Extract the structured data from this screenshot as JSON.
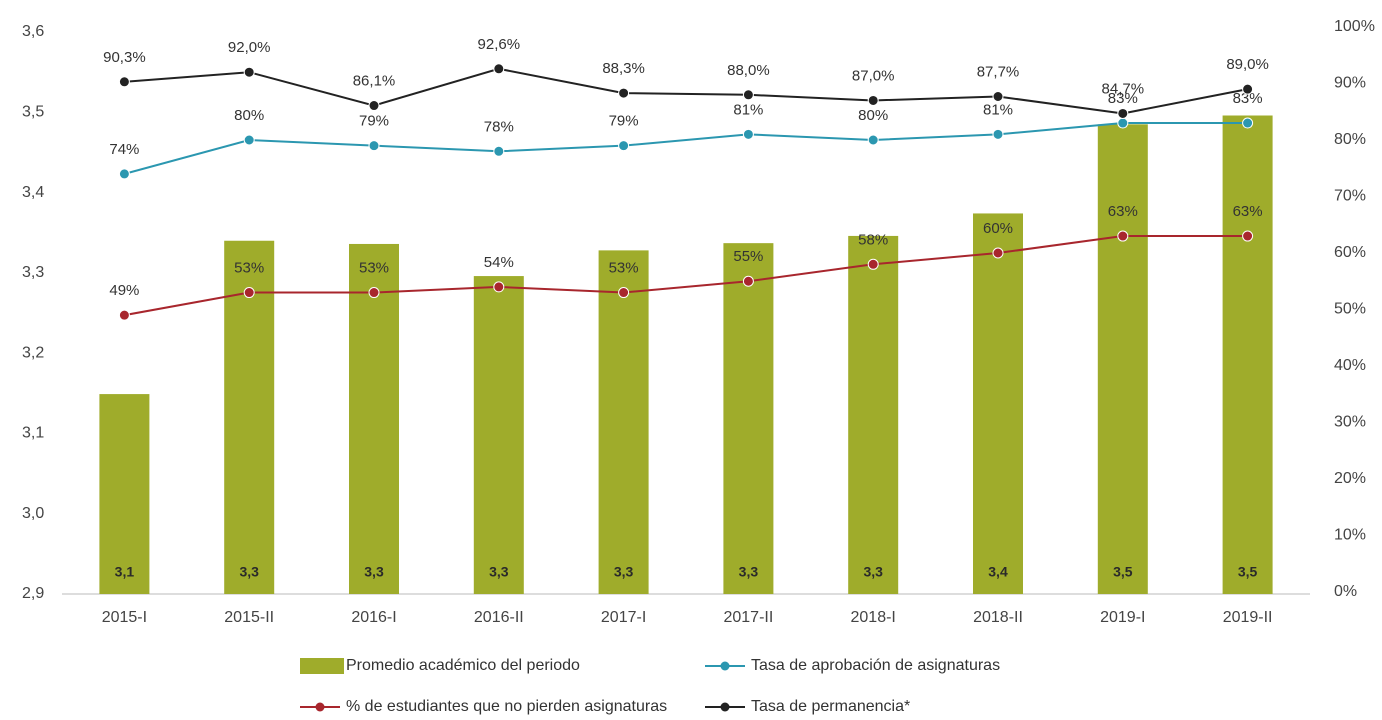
{
  "chart_data": {
    "type": "bar_line",
    "categories": [
      "2015-I",
      "2015-II",
      "2016-I",
      "2016-II",
      "2017-I",
      "2017-II",
      "2018-I",
      "2018-II",
      "2019-I",
      "2019-II"
    ],
    "ylim": [
      2.9,
      3.6
    ],
    "yticks": [
      {
        "value": 2.9,
        "label": "2,9"
      },
      {
        "value": 3.0,
        "label": "3,0"
      },
      {
        "value": 3.1,
        "label": "3,1"
      },
      {
        "value": 3.2,
        "label": "3,2"
      },
      {
        "value": 3.3,
        "label": "3,3"
      },
      {
        "value": 3.4,
        "label": "3,4"
      },
      {
        "value": 3.5,
        "label": "3,5"
      },
      {
        "value": 3.6,
        "label": "3,6"
      }
    ],
    "y2lim": [
      0,
      100
    ],
    "y2ticks": [
      {
        "value": 0,
        "label": "0%"
      },
      {
        "value": 10,
        "label": "10%"
      },
      {
        "value": 20,
        "label": "20%"
      },
      {
        "value": 30,
        "label": "30%"
      },
      {
        "value": 40,
        "label": "40%"
      },
      {
        "value": 50,
        "label": "50%"
      },
      {
        "value": 60,
        "label": "60%"
      },
      {
        "value": 70,
        "label": "70%"
      },
      {
        "value": 80,
        "label": "80%"
      },
      {
        "value": 90,
        "label": "90%"
      },
      {
        "value": 100,
        "label": "100%"
      }
    ],
    "series": [
      {
        "name": "Promedio académico del periodo",
        "type": "bar",
        "color": "#9fac2b",
        "axis": "y",
        "values": [
          3.149,
          3.34,
          3.336,
          3.296,
          3.328,
          3.337,
          3.346,
          3.374,
          3.485,
          3.496
        ],
        "value_labels": [
          "3,1",
          "3,3",
          "3,3",
          "3,3",
          "3,3",
          "3,3",
          "3,3",
          "3,4",
          "3,5",
          "3,5"
        ]
      },
      {
        "name": "Tasa de aprobación de asignaturas",
        "type": "line",
        "color": "#2b97b0",
        "axis": "y2",
        "values": [
          74,
          80,
          79,
          78,
          79,
          81,
          80,
          81,
          83,
          83
        ],
        "value_labels": [
          "74%",
          "80%",
          "79%",
          "78%",
          "79%",
          "81%",
          "80%",
          "81%",
          "83%",
          "83%"
        ]
      },
      {
        "name": "% de estudiantes que no pierden asignaturas",
        "type": "line",
        "color": "#a8262d",
        "axis": "y2",
        "values": [
          49,
          53,
          53,
          54,
          53,
          55,
          58,
          60,
          63,
          63
        ],
        "value_labels": [
          "49%",
          "53%",
          "53%",
          "54%",
          "53%",
          "55%",
          "58%",
          "60%",
          "63%",
          "63%"
        ]
      },
      {
        "name": "Tasa de permanencia*",
        "type": "line",
        "color": "#222222",
        "axis": "y2",
        "values": [
          90.3,
          92.0,
          86.1,
          92.6,
          88.3,
          88.0,
          87.0,
          87.7,
          84.7,
          89.0
        ],
        "value_labels": [
          "90,3%",
          "92,0%",
          "86,1%",
          "92,6%",
          "88,3%",
          "88,0%",
          "87,0%",
          "87,7%",
          "84,7%",
          "89,0%"
        ]
      }
    ]
  }
}
